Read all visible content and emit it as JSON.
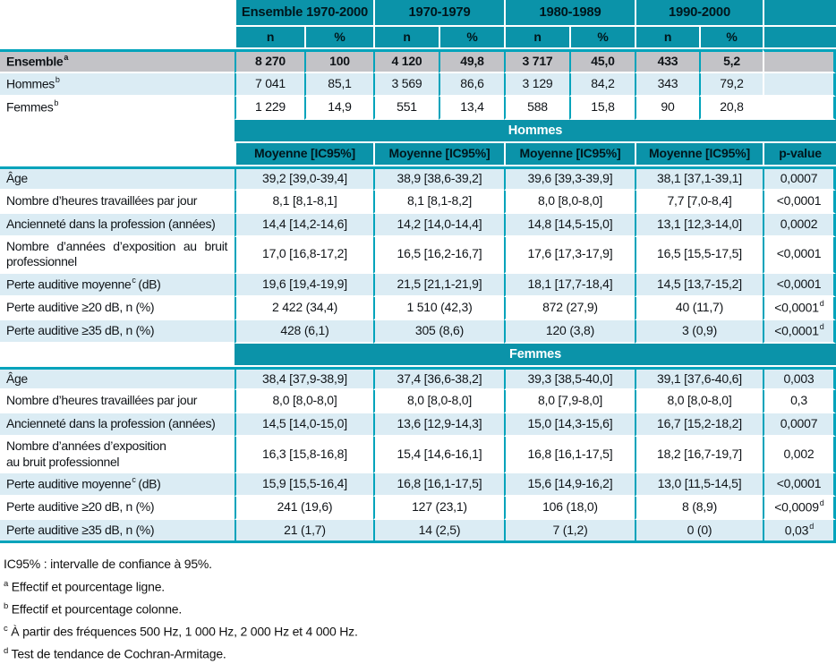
{
  "colors": {
    "teal_header": "#0b93a9",
    "teal_line": "#00a3bb",
    "light_blue_row": "#dbecf4",
    "gray_row": "#c3c3c7",
    "band_text": "#ffffff"
  },
  "header": {
    "col_groups": [
      "Ensemble 1970-2000",
      "1970-1979",
      "1980-1989",
      "1990-2000"
    ],
    "sub_cols": [
      "n",
      "%"
    ]
  },
  "top_rows": [
    {
      "label": "Ensemble",
      "sup": "a",
      "style": "gray",
      "values": [
        "8 270",
        "100",
        "4 120",
        "49,8",
        "3 717",
        "45,0",
        "433",
        "5,2"
      ]
    },
    {
      "label": "Hommes",
      "sup": "b",
      "style": "blue",
      "values": [
        "7 041",
        "85,1",
        "3 569",
        "86,6",
        "3 129",
        "84,2",
        "343",
        "79,2"
      ]
    },
    {
      "label": "Femmes",
      "sup": "b",
      "style": "wht",
      "values": [
        "1 229",
        "14,9",
        "551",
        "13,4",
        "588",
        "15,8",
        "90",
        "20,8"
      ]
    }
  ],
  "sections": [
    {
      "title": "Hommes",
      "col_header": "Moyenne [IC95%]",
      "p_header": "p-value",
      "rows": [
        {
          "label": "Âge",
          "values": [
            "39,2 [39,0-39,4]",
            "38,9 [38,6-39,2]",
            "39,6 [39,3-39,9]",
            "38,1 [37,1-39,1]"
          ],
          "p": "0,0007"
        },
        {
          "label": "Nombre d’heures travaillées par jour",
          "values": [
            "8,1 [8,1-8,1]",
            "8,1 [8,1-8,2]",
            "8,0 [8,0-8,0]",
            "7,7 [7,0-8,4]"
          ],
          "p": "<0,0001"
        },
        {
          "label": "Ancienneté dans la profession (années)",
          "values": [
            "14,4 [14,2-14,6]",
            "14,2 [14,0-14,4]",
            "14,8 [14,5-15,0]",
            "13,1 [12,3-14,0]"
          ],
          "p": "0,0002"
        },
        {
          "label": "Nombre d’années d’exposition au bruit professionnel",
          "justify": true,
          "values": [
            "17,0 [16,8-17,2]",
            "16,5 [16,2-16,7]",
            "17,6 [17,3-17,9]",
            "16,5 [15,5-17,5]"
          ],
          "p": "<0,0001"
        },
        {
          "label": "Perte auditive moyenne",
          "sup": "c",
          "label_post": " (dB)",
          "values": [
            "19,6 [19,4-19,9]",
            "21,5 [21,1-21,9]",
            "18,1 [17,7-18,4]",
            "14,5 [13,7-15,2]"
          ],
          "p": "<0,0001"
        },
        {
          "label": "Perte auditive ≥20 dB, n (%)",
          "values": [
            "2 422 (34,4)",
            "1 510 (42,3)",
            "872 (27,9)",
            "40 (11,7)"
          ],
          "p": "<0,0001",
          "p_sup": "d"
        },
        {
          "label": "Perte auditive ≥35 dB, n (%)",
          "values": [
            "428 (6,1)",
            "305 (8,6)",
            "120 (3,8)",
            "3 (0,9)"
          ],
          "p": "<0,0001",
          "p_sup": "d"
        }
      ]
    },
    {
      "title": "Femmes",
      "rows": [
        {
          "label": "Âge",
          "values": [
            "38,4 [37,9-38,9]",
            "37,4 [36,6-38,2]",
            "39,3 [38,5-40,0]",
            "39,1 [37,6-40,6]"
          ],
          "p": "0,003"
        },
        {
          "label": "Nombre d’heures travaillées par jour",
          "values": [
            "8,0 [8,0-8,0]",
            "8,0 [8,0-8,0]",
            "8,0 [7,9-8,0]",
            "8,0 [8,0-8,0]"
          ],
          "p": "0,3"
        },
        {
          "label": "Ancienneté dans la profession (années)",
          "values": [
            "14,5 [14,0-15,0]",
            "13,6 [12,9-14,3]",
            "15,0 [14,3-15,6]",
            "16,7 [15,2-18,2]"
          ],
          "p": "0,0007"
        },
        {
          "label": "Nombre d’années d’exposition\nau bruit professionnel",
          "values": [
            "16,3 [15,8-16,8]",
            "15,4 [14,6-16,1]",
            "16,8 [16,1-17,5]",
            "18,2 [16,7-19,7]"
          ],
          "p": "0,002"
        },
        {
          "label": "Perte auditive moyenne",
          "sup": "c",
          "label_post": " (dB)",
          "values": [
            "15,9 [15,5-16,4]",
            "16,8 [16,1-17,5]",
            "15,6 [14,9-16,2]",
            "13,0 [11,5-14,5]"
          ],
          "p": "<0,0001"
        },
        {
          "label": "Perte auditive ≥20 dB, n (%)",
          "values": [
            "241 (19,6)",
            "127 (23,1)",
            "106 (18,0)",
            "8 (8,9)"
          ],
          "p": "<0,0009",
          "p_sup": "d"
        },
        {
          "label": "Perte auditive ≥35 dB, n (%)",
          "values": [
            "21 (1,7)",
            "14 (2,5)",
            "7 (1,2)",
            "0 (0)"
          ],
          "p": "0,03",
          "p_sup": "d"
        }
      ]
    }
  ],
  "footnotes": [
    {
      "sup": "",
      "text": "IC95% : intervalle de confiance à 95%."
    },
    {
      "sup": "a",
      "text": "Effectif et pourcentage ligne."
    },
    {
      "sup": "b",
      "text": "Effectif et pourcentage colonne."
    },
    {
      "sup": "c",
      "text": "À partir des fréquences 500 Hz, 1 000 Hz, 2 000 Hz et 4 000 Hz."
    },
    {
      "sup": "d",
      "text": "Test de tendance de Cochran-Armitage."
    }
  ]
}
